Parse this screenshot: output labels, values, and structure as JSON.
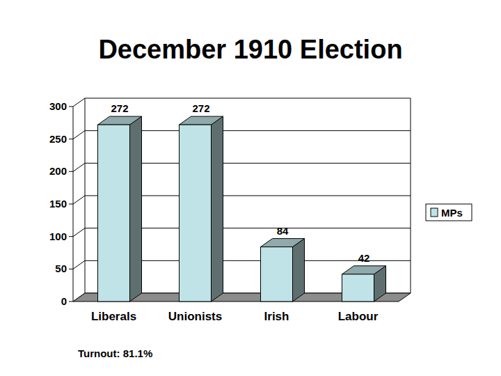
{
  "chart_data": {
    "type": "bar",
    "title": "December 1910 Election",
    "categories": [
      "Liberals",
      "Unionists",
      "Irish",
      "Labour"
    ],
    "series": [
      {
        "name": "MPs",
        "color": "#bfe3e6",
        "values": [
          272,
          272,
          84,
          42
        ]
      }
    ],
    "ylim": [
      0,
      300
    ],
    "yticks": [
      0,
      50,
      100,
      150,
      200,
      250,
      300
    ],
    "grid": true,
    "data_labels": true,
    "legend": "right",
    "annotation": "Turnout: 81.1%"
  }
}
